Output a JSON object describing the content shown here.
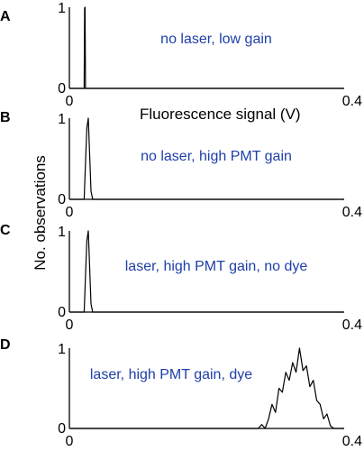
{
  "chart_data": {
    "type": "line",
    "xlabel": "Fluorescence signal (V)",
    "ylabel": "No. observations",
    "xlim": [
      0,
      0.4
    ],
    "ylim": [
      0,
      1
    ],
    "x_tick_labels": [
      "0",
      "0.4"
    ],
    "y_tick_labels": [
      "0",
      "1"
    ],
    "grid": false,
    "panels": [
      {
        "id": "A",
        "annotation": "no laser, low gain",
        "x": [
          0.0,
          0.018,
          0.0215,
          0.0222,
          0.0228,
          0.0235,
          0.026,
          0.4
        ],
        "y": [
          0.0,
          0.0,
          0.0,
          0.99,
          1.0,
          0.0,
          0.0,
          0.0
        ]
      },
      {
        "id": "B",
        "annotation": "no laser, high PMT gain",
        "x": [
          0.0,
          0.018,
          0.0215,
          0.0235,
          0.0255,
          0.0275,
          0.0295,
          0.0315,
          0.034,
          0.4
        ],
        "y": [
          0.0,
          0.0,
          0.0,
          0.45,
          0.88,
          1.0,
          0.55,
          0.1,
          0.0,
          0.0
        ]
      },
      {
        "id": "C",
        "annotation": "laser, high PMT gain, no dye",
        "x": [
          0.0,
          0.018,
          0.0215,
          0.0235,
          0.0255,
          0.0275,
          0.0295,
          0.0315,
          0.034,
          0.4
        ],
        "y": [
          0.0,
          0.0,
          0.0,
          0.45,
          0.88,
          1.0,
          0.55,
          0.1,
          0.0,
          0.0
        ]
      },
      {
        "id": "D",
        "annotation": "laser, high PMT gain, dye",
        "x": [
          0.0,
          0.275,
          0.28,
          0.285,
          0.29,
          0.295,
          0.3,
          0.305,
          0.31,
          0.315,
          0.32,
          0.325,
          0.33,
          0.335,
          0.34,
          0.345,
          0.35,
          0.355,
          0.36,
          0.365,
          0.37,
          0.375,
          0.38,
          0.385,
          0.4
        ],
        "y": [
          0.0,
          0.0,
          0.05,
          0.0,
          0.12,
          0.3,
          0.2,
          0.5,
          0.45,
          0.7,
          0.6,
          0.82,
          0.7,
          1.0,
          0.72,
          0.78,
          0.52,
          0.6,
          0.35,
          0.3,
          0.12,
          0.18,
          0.03,
          0.0,
          0.0
        ]
      }
    ]
  }
}
